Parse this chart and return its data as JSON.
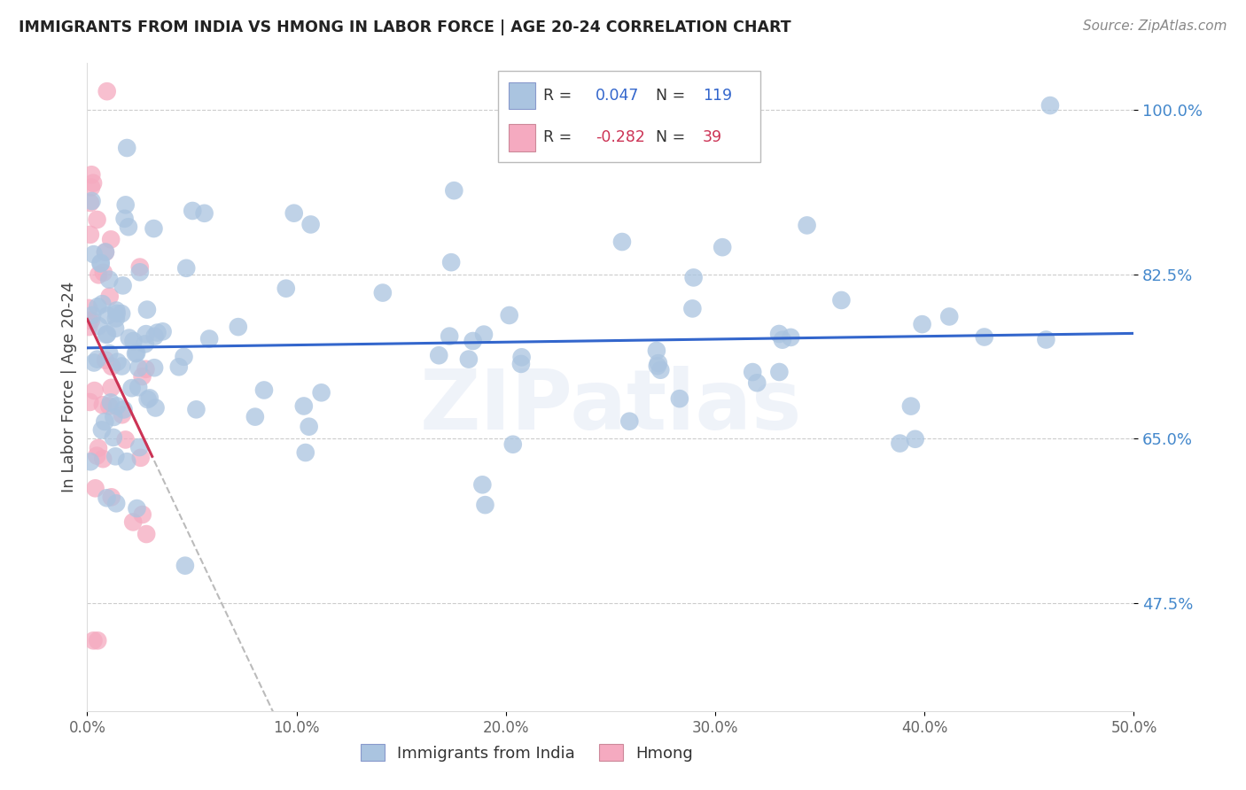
{
  "title": "IMMIGRANTS FROM INDIA VS HMONG IN LABOR FORCE | AGE 20-24 CORRELATION CHART",
  "source": "Source: ZipAtlas.com",
  "ylabel": "In Labor Force | Age 20-24",
  "y_ticks": [
    0.475,
    0.65,
    0.825,
    1.0
  ],
  "y_tick_labels": [
    "47.5%",
    "65.0%",
    "82.5%",
    "100.0%"
  ],
  "xlim": [
    0.0,
    0.5
  ],
  "ylim": [
    0.36,
    1.05
  ],
  "india_R": 0.047,
  "india_N": 119,
  "hmong_R": -0.282,
  "hmong_N": 39,
  "india_color": "#aac4e0",
  "hmong_color": "#f5aac0",
  "india_line_color": "#3366cc",
  "hmong_line_color": "#cc3355",
  "hmong_dashed_color": "#bbbbbb",
  "background_color": "#ffffff",
  "grid_color": "#cccccc",
  "title_color": "#222222",
  "source_color": "#888888",
  "tick_color": "#4488cc",
  "watermark": "ZIPatlas"
}
